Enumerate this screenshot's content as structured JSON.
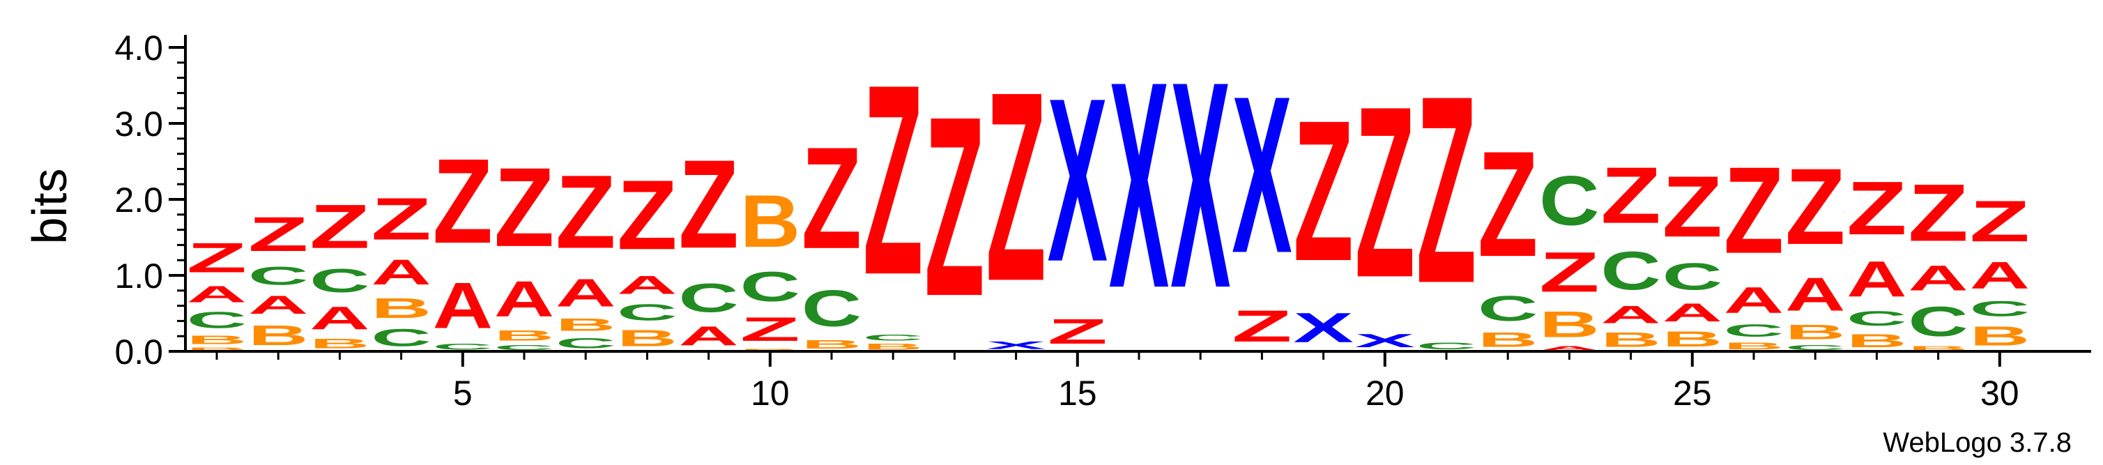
{
  "chart_data": {
    "type": "sequence-logo",
    "ylabel": "bits",
    "ylim": [
      0,
      4.0
    ],
    "y_ticks": [
      "0.0",
      "1.0",
      "2.0",
      "3.0",
      "4.0"
    ],
    "x_ticks": [
      5,
      10,
      15,
      20,
      25,
      30
    ],
    "x_range": [
      1,
      30
    ],
    "credit": "WebLogo 3.7.8",
    "colors": {
      "Z": "#ff0000",
      "A": "#ff0000",
      "X": "#0000ff",
      "C": "#228b22",
      "B": "#ff8c00"
    },
    "positions": [
      {
        "pos": 1,
        "stack": [
          [
            "B",
            0.06
          ],
          [
            "B",
            0.18
          ],
          [
            "C",
            0.34
          ],
          [
            "A",
            0.34
          ],
          [
            "Z",
            0.62
          ]
        ]
      },
      {
        "pos": 2,
        "stack": [
          [
            "B",
            0.42
          ],
          [
            "A",
            0.38
          ],
          [
            "C",
            0.38
          ],
          [
            "Z",
            0.72
          ]
        ]
      },
      {
        "pos": 3,
        "stack": [
          [
            "B",
            0.2
          ],
          [
            "A",
            0.48
          ],
          [
            "C",
            0.5
          ],
          [
            "Z",
            0.92
          ]
        ]
      },
      {
        "pos": 4,
        "stack": [
          [
            "C",
            0.36
          ],
          [
            "B",
            0.42
          ],
          [
            "A",
            0.52
          ],
          [
            "Z",
            0.88
          ]
        ]
      },
      {
        "pos": 5,
        "stack": [
          [
            "C",
            0.12
          ],
          [
            "A",
            0.96
          ],
          [
            "Z",
            1.78
          ]
        ]
      },
      {
        "pos": 6,
        "stack": [
          [
            "C",
            0.1
          ],
          [
            "B",
            0.22
          ],
          [
            "A",
            0.74
          ],
          [
            "Z",
            1.66
          ]
        ]
      },
      {
        "pos": 7,
        "stack": [
          [
            "C",
            0.22
          ],
          [
            "B",
            0.26
          ],
          [
            "A",
            0.58
          ],
          [
            "Z",
            1.54
          ]
        ]
      },
      {
        "pos": 8,
        "stack": [
          [
            "B",
            0.34
          ],
          [
            "C",
            0.34
          ],
          [
            "A",
            0.38
          ],
          [
            "Z",
            1.46
          ]
        ]
      },
      {
        "pos": 9,
        "stack": [
          [
            "A",
            0.4
          ],
          [
            "C",
            0.6
          ],
          [
            "Z",
            1.86
          ]
        ]
      },
      {
        "pos": 10,
        "stack": [
          [
            "B",
            0.04
          ],
          [
            "Z",
            0.5
          ],
          [
            "C",
            0.62
          ],
          [
            "B",
            1.1
          ]
        ]
      },
      {
        "pos": 11,
        "stack": [
          [
            "B",
            0.18
          ],
          [
            "C",
            0.76
          ],
          [
            "Z",
            2.14
          ]
        ]
      },
      {
        "pos": 12,
        "stack": [
          [
            "B",
            0.12
          ],
          [
            "C",
            0.12
          ],
          [
            "Z",
            4.0
          ]
        ]
      },
      {
        "pos": 13,
        "stack": [
          [
            "Z",
            3.78
          ]
        ]
      },
      {
        "pos": 14,
        "stack": [
          [
            "X",
            0.16
          ],
          [
            "Z",
            3.98
          ]
        ]
      },
      {
        "pos": 15,
        "stack": [
          [
            "Z",
            0.52
          ],
          [
            "X",
            3.44
          ]
        ]
      },
      {
        "pos": 16,
        "stack": [
          [
            "X",
            4.34
          ]
        ]
      },
      {
        "pos": 17,
        "stack": [
          [
            "X",
            4.34
          ]
        ]
      },
      {
        "pos": 18,
        "stack": [
          [
            "Z",
            0.66
          ],
          [
            "X",
            3.3
          ]
        ]
      },
      {
        "pos": 19,
        "stack": [
          [
            "X",
            0.62
          ],
          [
            "Z",
            2.96
          ]
        ]
      },
      {
        "pos": 20,
        "stack": [
          [
            "X",
            0.28
          ],
          [
            "Z",
            3.6
          ]
        ]
      },
      {
        "pos": 21,
        "stack": [
          [
            "C",
            0.14
          ],
          [
            "Z",
            3.94
          ]
        ]
      },
      {
        "pos": 22,
        "stack": [
          [
            "B",
            0.3
          ],
          [
            "C",
            0.52
          ],
          [
            "Z",
            2.22
          ]
        ]
      },
      {
        "pos": 23,
        "stack": [
          [
            "A",
            0.08
          ],
          [
            "B",
            0.54
          ],
          [
            "Z",
            0.84
          ],
          [
            "C",
            1.04
          ]
        ]
      },
      {
        "pos": 24,
        "stack": [
          [
            "B",
            0.3
          ],
          [
            "A",
            0.36
          ],
          [
            "C",
            0.8
          ],
          [
            "Z",
            1.18
          ]
        ]
      },
      {
        "pos": 25,
        "stack": [
          [
            "B",
            0.32
          ],
          [
            "A",
            0.38
          ],
          [
            "C",
            0.56
          ],
          [
            "Z",
            1.28
          ]
        ]
      },
      {
        "pos": 26,
        "stack": [
          [
            "B",
            0.14
          ],
          [
            "C",
            0.26
          ],
          [
            "A",
            0.54
          ],
          [
            "Z",
            1.82
          ]
        ]
      },
      {
        "pos": 27,
        "stack": [
          [
            "C",
            0.1
          ],
          [
            "B",
            0.3
          ],
          [
            "A",
            0.7
          ],
          [
            "Z",
            1.6
          ]
        ]
      },
      {
        "pos": 28,
        "stack": [
          [
            "B",
            0.28
          ],
          [
            "C",
            0.3
          ],
          [
            "A",
            0.74
          ],
          [
            "Z",
            1.12
          ]
        ]
      },
      {
        "pos": 29,
        "stack": [
          [
            "B",
            0.08
          ],
          [
            "C",
            0.62
          ],
          [
            "A",
            0.52
          ],
          [
            "Z",
            1.2
          ]
        ]
      },
      {
        "pos": 30,
        "stack": [
          [
            "B",
            0.4
          ],
          [
            "C",
            0.32
          ],
          [
            "A",
            0.56
          ],
          [
            "Z",
            0.86
          ]
        ]
      }
    ]
  }
}
